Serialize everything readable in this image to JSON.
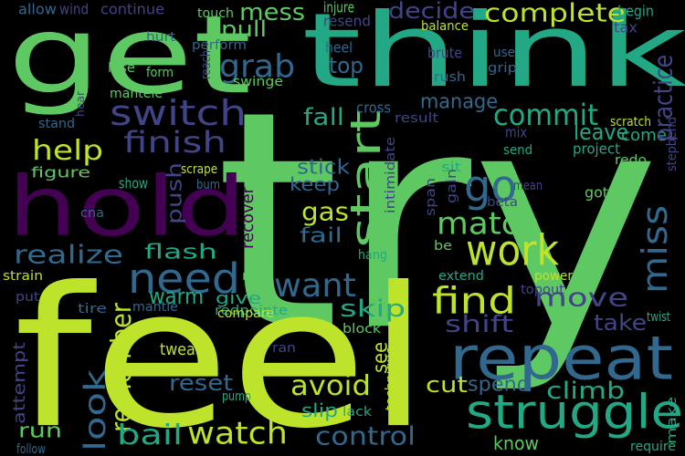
{
  "background": "#000000",
  "palette": {
    "lime": "#bde32a",
    "green": "#5ec962",
    "teal": "#22a884",
    "cyan": "#2a9d8f",
    "blue": "#31688e",
    "indigo": "#414487",
    "purple": "#440154",
    "slate": "#3b528b"
  },
  "words": [
    {
      "text": "try",
      "color": "green"
    },
    {
      "text": "feel",
      "color": "lime"
    },
    {
      "text": "get",
      "color": "green"
    },
    {
      "text": "think",
      "color": "teal"
    },
    {
      "text": "hold",
      "color": "purple"
    },
    {
      "text": "repeat",
      "color": "blue"
    },
    {
      "text": "struggle",
      "color": "teal"
    },
    {
      "text": "work",
      "color": "lime"
    },
    {
      "text": "need",
      "color": "blue"
    },
    {
      "text": "find",
      "color": "lime"
    },
    {
      "text": "go",
      "color": "blue"
    },
    {
      "text": "start",
      "color": "green"
    },
    {
      "text": "match",
      "color": "green"
    },
    {
      "text": "miss",
      "color": "blue"
    },
    {
      "text": "want",
      "color": "blue"
    },
    {
      "text": "look",
      "color": "blue"
    },
    {
      "text": "switch",
      "color": "indigo"
    },
    {
      "text": "finish",
      "color": "indigo"
    },
    {
      "text": "grab",
      "color": "blue"
    },
    {
      "text": "mess",
      "color": "green"
    },
    {
      "text": "commit",
      "color": "teal"
    },
    {
      "text": "help",
      "color": "lime"
    },
    {
      "text": "realize",
      "color": "blue"
    },
    {
      "text": "move",
      "color": "indigo"
    },
    {
      "text": "avoid",
      "color": "lime"
    },
    {
      "text": "remember",
      "color": "lime"
    },
    {
      "text": "watch",
      "color": "lime"
    },
    {
      "text": "control",
      "color": "blue"
    },
    {
      "text": "bail",
      "color": "teal"
    },
    {
      "text": "complete",
      "color": "lime"
    },
    {
      "text": "decide",
      "color": "indigo"
    },
    {
      "text": "manage",
      "color": "blue"
    },
    {
      "text": "fall",
      "color": "teal"
    },
    {
      "text": "skip",
      "color": "teal"
    },
    {
      "text": "shift",
      "color": "indigo"
    },
    {
      "text": "see",
      "color": "lime"
    },
    {
      "text": "cut",
      "color": "lime"
    },
    {
      "text": "climb",
      "color": "teal"
    },
    {
      "text": "take",
      "color": "indigo"
    },
    {
      "text": "come",
      "color": "teal"
    },
    {
      "text": "leave",
      "color": "teal"
    },
    {
      "text": "practice",
      "color": "indigo"
    },
    {
      "text": "stick",
      "color": "blue"
    },
    {
      "text": "keep",
      "color": "blue"
    },
    {
      "text": "gas",
      "color": "lime"
    },
    {
      "text": "fail",
      "color": "blue"
    },
    {
      "text": "push",
      "color": "indigo"
    },
    {
      "text": "recover",
      "color": "purple"
    },
    {
      "text": "flash",
      "color": "teal"
    },
    {
      "text": "warm",
      "color": "teal"
    },
    {
      "text": "give",
      "color": "teal"
    },
    {
      "text": "reset",
      "color": "blue"
    },
    {
      "text": "run",
      "color": "green"
    },
    {
      "text": "slip",
      "color": "teal"
    },
    {
      "text": "spend",
      "color": "blue"
    },
    {
      "text": "pull",
      "color": "green"
    },
    {
      "text": "top",
      "color": "blue"
    },
    {
      "text": "attempt",
      "color": "indigo"
    },
    {
      "text": "figure",
      "color": "green"
    },
    {
      "text": "tweak",
      "color": "lime"
    },
    {
      "text": "know",
      "color": "green"
    },
    {
      "text": "make",
      "color": "teal"
    },
    {
      "text": "allow",
      "color": "blue"
    },
    {
      "text": "wind",
      "color": "indigo"
    },
    {
      "text": "continue",
      "color": "indigo"
    },
    {
      "text": "touch",
      "color": "green"
    },
    {
      "text": "injure",
      "color": "green"
    },
    {
      "text": "resend",
      "color": "indigo"
    },
    {
      "text": "heel",
      "color": "blue"
    },
    {
      "text": "balance",
      "color": "lime"
    },
    {
      "text": "brute",
      "color": "indigo"
    },
    {
      "text": "begin",
      "color": "teal"
    },
    {
      "text": "tax",
      "color": "indigo"
    },
    {
      "text": "hurt",
      "color": "blue"
    },
    {
      "text": "perform",
      "color": "blue"
    },
    {
      "text": "reach",
      "color": "indigo"
    },
    {
      "text": "use",
      "color": "blue"
    },
    {
      "text": "grip",
      "color": "blue"
    },
    {
      "text": "rush",
      "color": "blue"
    },
    {
      "text": "lose",
      "color": "green"
    },
    {
      "text": "form",
      "color": "green"
    },
    {
      "text": "swinge",
      "color": "green"
    },
    {
      "text": "mantele",
      "color": "green"
    },
    {
      "text": "stand",
      "color": "blue"
    },
    {
      "text": "hear",
      "color": "indigo"
    },
    {
      "text": "cross",
      "color": "blue"
    },
    {
      "text": "result",
      "color": "indigo"
    },
    {
      "text": "mix",
      "color": "indigo"
    },
    {
      "text": "send",
      "color": "teal"
    },
    {
      "text": "project",
      "color": "teal"
    },
    {
      "text": "stepbend",
      "color": "indigo"
    },
    {
      "text": "scratch",
      "color": "lime"
    },
    {
      "text": "redo",
      "color": "green"
    },
    {
      "text": "scrape",
      "color": "lime"
    },
    {
      "text": "show",
      "color": "teal"
    },
    {
      "text": "bum",
      "color": "blue"
    },
    {
      "text": "intimidate",
      "color": "indigo"
    },
    {
      "text": "sit",
      "color": "teal"
    },
    {
      "text": "mean",
      "color": "indigo"
    },
    {
      "text": "span",
      "color": "indigo"
    },
    {
      "text": "gain",
      "color": "indigo"
    },
    {
      "text": "beta",
      "color": "indigo"
    },
    {
      "text": "got",
      "color": "green"
    },
    {
      "text": "cna",
      "color": "blue"
    },
    {
      "text": "hang",
      "color": "teal"
    },
    {
      "text": "be",
      "color": "green"
    },
    {
      "text": "extend",
      "color": "teal"
    },
    {
      "text": "power",
      "color": "lime"
    },
    {
      "text": "strain",
      "color": "lime"
    },
    {
      "text": "read",
      "color": "green"
    },
    {
      "text": "redpointe",
      "color": "teal"
    },
    {
      "text": "topout",
      "color": "indigo"
    },
    {
      "text": "put",
      "color": "indigo"
    },
    {
      "text": "tire",
      "color": "blue"
    },
    {
      "text": "mantle",
      "color": "blue"
    },
    {
      "text": "compare",
      "color": "lime"
    },
    {
      "text": "twist",
      "color": "teal"
    },
    {
      "text": "block",
      "color": "green"
    },
    {
      "text": "ran",
      "color": "indigo"
    },
    {
      "text": "technique",
      "color": "lime"
    },
    {
      "text": "pump",
      "color": "teal"
    },
    {
      "text": "lack",
      "color": "teal"
    },
    {
      "text": "follow",
      "color": "blue"
    },
    {
      "text": "require",
      "color": "teal"
    }
  ]
}
